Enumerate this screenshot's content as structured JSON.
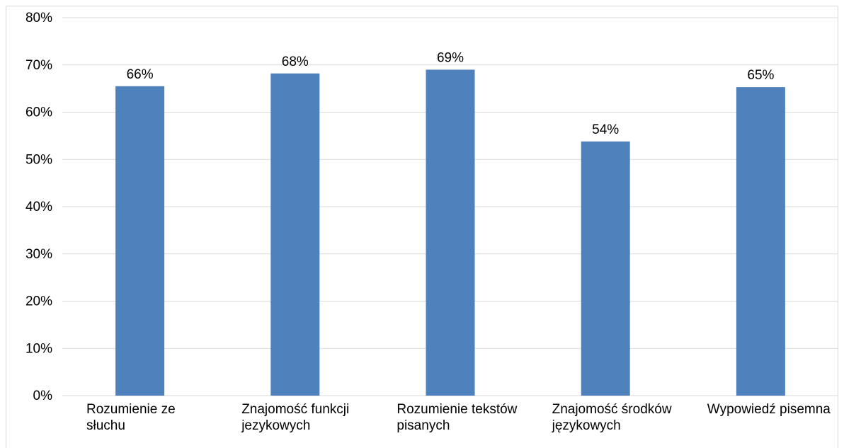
{
  "chart_data": {
    "type": "bar",
    "categories": [
      [
        "Rozumienie ze",
        "słuchu"
      ],
      [
        "Znajomość funkcji",
        "jezykowych"
      ],
      [
        "Rozumienie tekstów",
        "pisanych"
      ],
      [
        "Znajomość środków",
        "językowych"
      ],
      [
        "Wypowiedź pisemna"
      ]
    ],
    "values": [
      65.5,
      68.2,
      69,
      53.8,
      65.3
    ],
    "data_labels": [
      "66%",
      "68%",
      "69%",
      "54%",
      "65%"
    ],
    "y_ticks": [
      "0%",
      "10%",
      "20%",
      "30%",
      "40%",
      "50%",
      "60%",
      "70%",
      "80%"
    ],
    "ylim": [
      0,
      80
    ],
    "grid": true,
    "bar_color": "#4f81bd",
    "grid_color": "#d9d9d9"
  }
}
